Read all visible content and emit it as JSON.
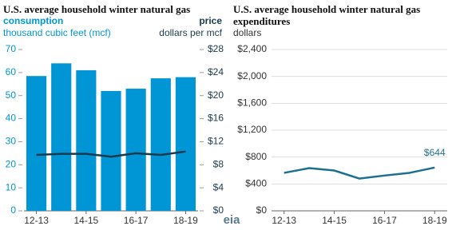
{
  "chart_data": [
    {
      "type": "bar",
      "title": "U.S. average household winter natural gas",
      "y_label": "thousand cubic feet (mcf)",
      "y2_label": "dollars per mcf",
      "categories": [
        "12-13",
        null,
        "14-15",
        null,
        "16-17",
        null,
        "18-19"
      ],
      "series": [
        {
          "name": "consumption",
          "color": "#0096d6",
          "values": [
            58.5,
            64,
            61,
            52,
            53,
            57.5,
            58
          ]
        },
        {
          "name": "price",
          "color": "#1b3a4b",
          "axis": "y2",
          "values": [
            9.7,
            9.9,
            9.9,
            9.4,
            10.0,
            9.7,
            10.3
          ]
        }
      ],
      "ylim": [
        0,
        70
      ],
      "yticks": [
        0,
        10,
        20,
        30,
        40,
        50,
        60,
        70
      ],
      "y2lim": [
        0,
        28
      ],
      "y2ticks": [
        {
          "value": 0,
          "label": "$0"
        },
        {
          "value": 4,
          "label": "$4"
        },
        {
          "value": 8,
          "label": "$8"
        },
        {
          "value": 12,
          "label": "$12"
        },
        {
          "value": 16,
          "label": "$16"
        },
        {
          "value": 20,
          "label": "$20"
        },
        {
          "value": 24,
          "label": "$24"
        },
        {
          "value": 28,
          "label": "$28"
        }
      ]
    },
    {
      "type": "line",
      "title": "U.S. average household winter natural gas expenditures",
      "y_label": "dollars",
      "categories": [
        "12-13",
        null,
        "14-15",
        null,
        "16-17",
        null,
        "18-19"
      ],
      "color": "#1d6f8e",
      "values": [
        565,
        635,
        600,
        480,
        525,
        565,
        644
      ],
      "value_labels": [
        null,
        null,
        null,
        null,
        null,
        null,
        "$644"
      ],
      "ylim": [
        0,
        2400
      ],
      "yticks": [
        {
          "value": 0,
          "label": "$0"
        },
        {
          "value": 400,
          "label": "$400"
        },
        {
          "value": 800,
          "label": "$800"
        },
        {
          "value": 1200,
          "label": "$1,200"
        },
        {
          "value": 1600,
          "label": "$1,600"
        },
        {
          "value": 2000,
          "label": "$2,000"
        },
        {
          "value": 2400,
          "label": "$2,400"
        }
      ],
      "grid": true
    }
  ],
  "logo": "eia"
}
